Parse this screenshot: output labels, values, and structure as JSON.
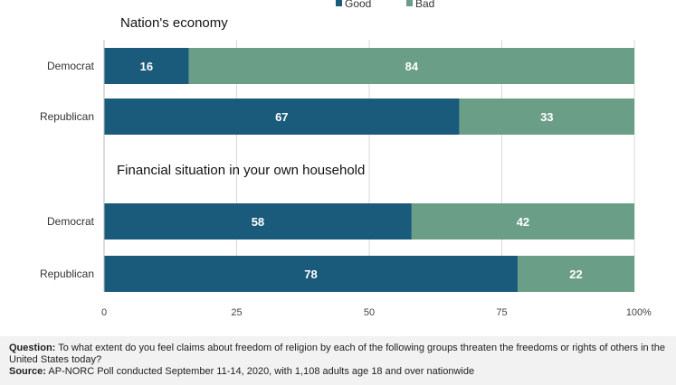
{
  "chart_data": {
    "type": "bar",
    "orientation": "horizontal",
    "stacked": true,
    "legend": {
      "placement": "top-right",
      "entries": [
        "Good",
        "Bad"
      ]
    },
    "colors": {
      "Good": "#1a5a7a",
      "Bad": "#6a9e87"
    },
    "grid": true,
    "xlim": [
      0,
      100
    ],
    "x_ticks": [
      "0",
      "25",
      "50",
      "75",
      "100"
    ],
    "x_unit": "%",
    "panels": [
      {
        "title": "Nation's economy",
        "categories": [
          "Democrat",
          "Republican"
        ],
        "series": [
          {
            "name": "Good",
            "values": [
              16,
              67
            ]
          },
          {
            "name": "Bad",
            "values": [
              84,
              33
            ]
          }
        ]
      },
      {
        "title": "Financial situation in your own household",
        "categories": [
          "Democrat",
          "Republican"
        ],
        "series": [
          {
            "name": "Good",
            "values": [
              58,
              78
            ]
          },
          {
            "name": "Bad",
            "values": [
              42,
              22
            ]
          }
        ]
      }
    ]
  },
  "footer": {
    "question_label": "Question:",
    "question_text": "To what extent do you feel claims about freedom of religion by each of the following groups threaten the freedoms or rights of others in the United States today?",
    "source_label": "Source:",
    "source_text": "AP-NORC Poll conducted September 11-14, 2020, with 1,108 adults age 18 and over nationwide"
  }
}
